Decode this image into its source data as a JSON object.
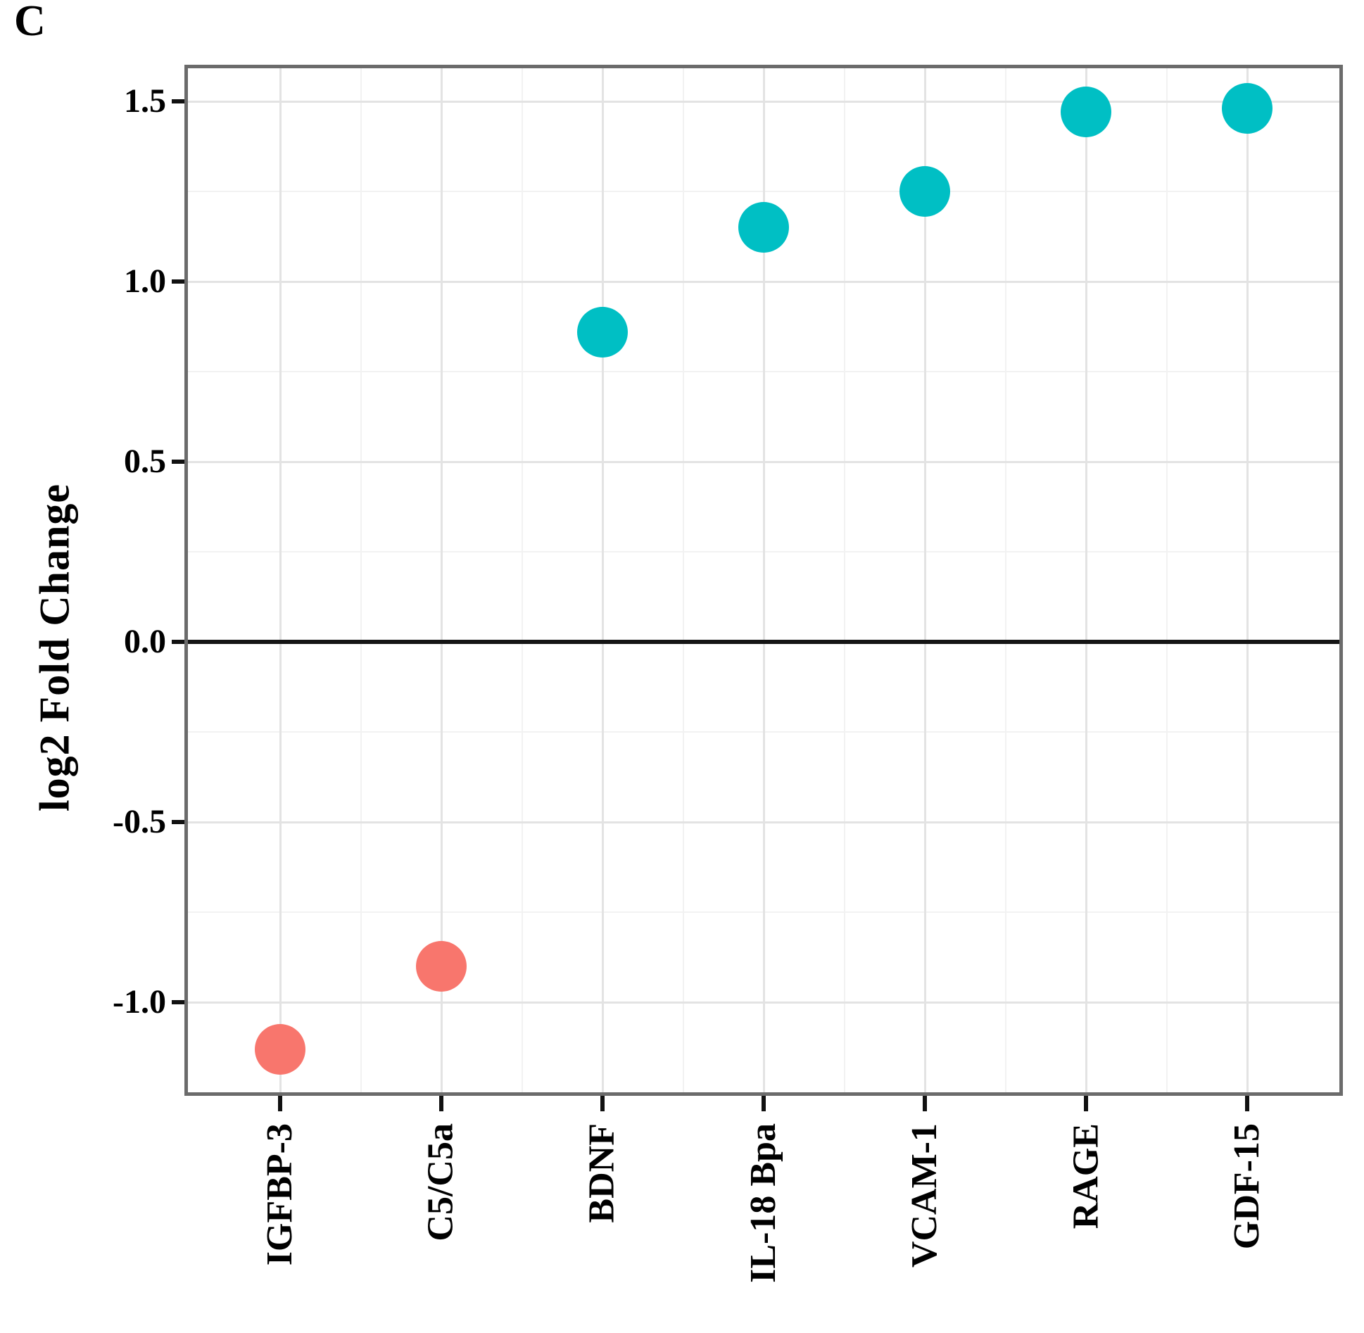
{
  "figure": {
    "panel_label": "C"
  },
  "chart_data": {
    "type": "scatter",
    "title": "",
    "xlabel": "",
    "ylabel": "log2 Fold Change",
    "categories": [
      "IGFBP-3",
      "C5/C5a",
      "BDNF",
      "IL-18 Bpa",
      "VCAM-1",
      "RAGE",
      "GDF-15"
    ],
    "points": [
      {
        "label": "IGFBP-3",
        "value": -1.13,
        "direction": "down",
        "color": "#F8766D"
      },
      {
        "label": "C5/C5a",
        "value": -0.9,
        "direction": "down",
        "color": "#F8766D"
      },
      {
        "label": "BDNF",
        "value": 0.86,
        "direction": "up",
        "color": "#00BFC4"
      },
      {
        "label": "IL-18 Bpa",
        "value": 1.15,
        "direction": "up",
        "color": "#00BFC4"
      },
      {
        "label": "VCAM-1",
        "value": 1.25,
        "direction": "up",
        "color": "#00BFC4"
      },
      {
        "label": "RAGE",
        "value": 1.47,
        "direction": "up",
        "color": "#00BFC4"
      },
      {
        "label": "GDF-15",
        "value": 1.48,
        "direction": "up",
        "color": "#00BFC4"
      }
    ],
    "yticks": [
      1.5,
      1.0,
      0.5,
      0.0,
      -0.5,
      -1.0
    ],
    "ytick_labels": [
      "1.5",
      "1.0",
      "0.5",
      "0.0",
      "-0.5",
      "-1.0"
    ],
    "yminor_ticks": [
      1.25,
      0.75,
      0.25,
      -0.25,
      -0.75
    ],
    "ylim": [
      -1.25,
      1.6
    ],
    "zero_line": true,
    "grid": "major+minor",
    "legend_position": "none",
    "colors": {
      "upregulated": "#00BFC4",
      "downregulated": "#F8766D"
    }
  }
}
